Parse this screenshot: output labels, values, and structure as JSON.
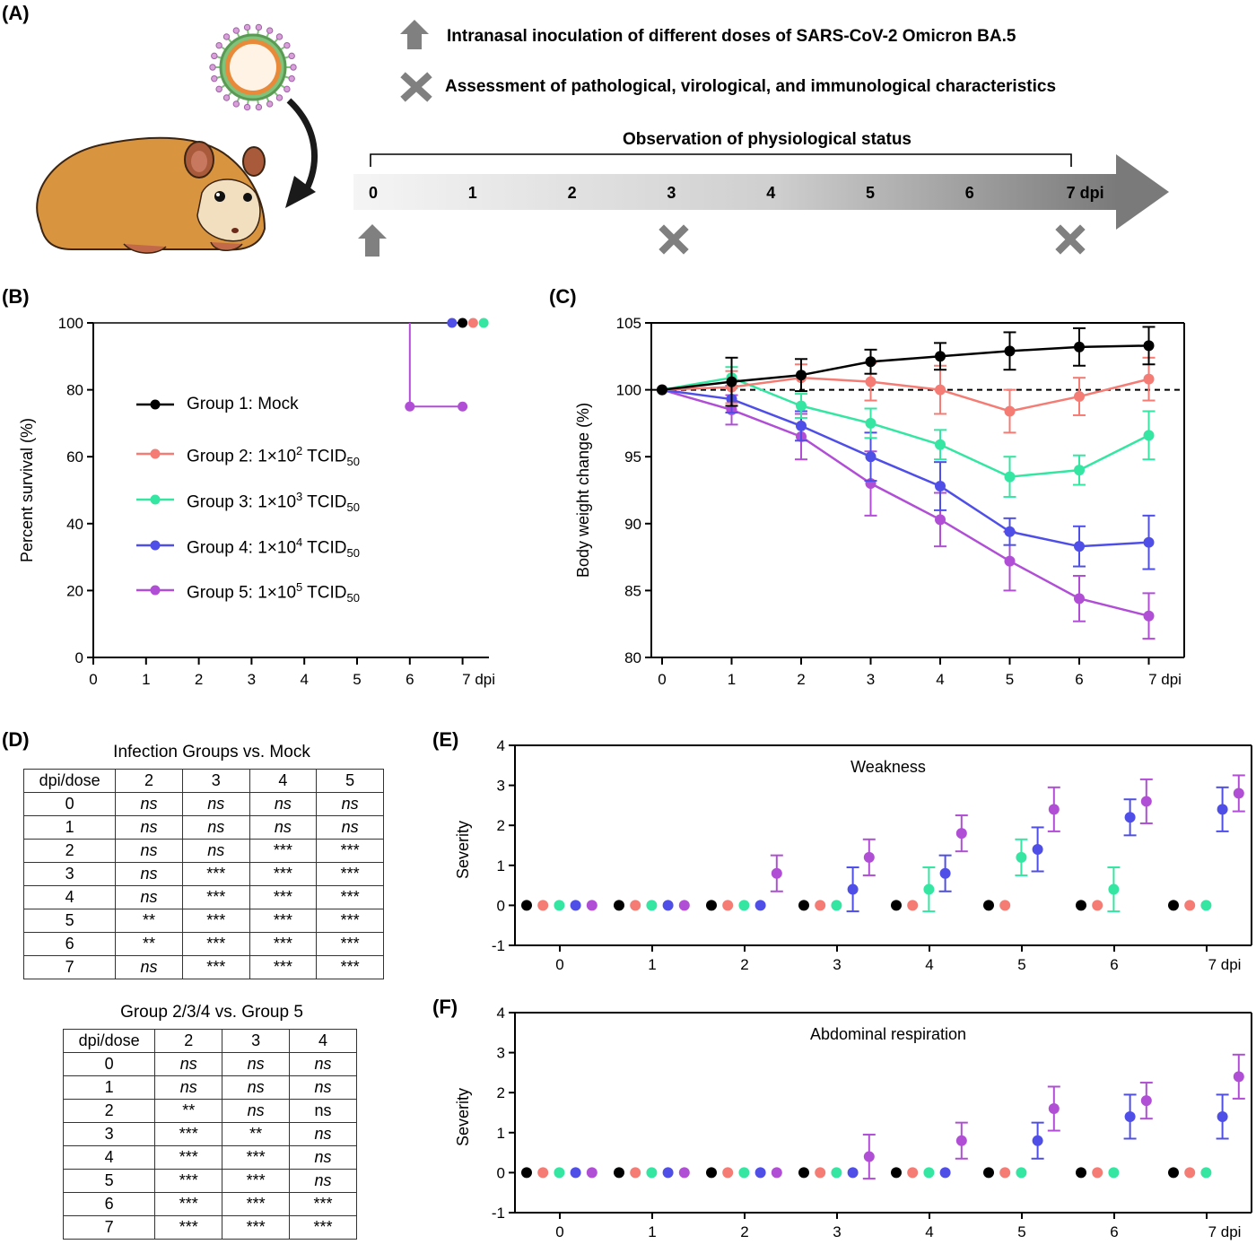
{
  "panelA": {
    "letter": "(A)",
    "legend_inoculation": "Intranasal inoculation of different doses of SARS-CoV-2 Omicron BA.5",
    "legend_assessment": "Assessment of pathological, virological, and immunological characteristics",
    "bracket_label": "Observation of physiological status",
    "timeline_ticks": [
      "0",
      "1",
      "2",
      "3",
      "4",
      "5",
      "6",
      "7 dpi"
    ],
    "inoculation_marks_at": [
      0
    ],
    "assessment_marks_at": [
      3,
      7
    ],
    "colors": {
      "arrow": "#808080",
      "hamster_body": "#d9943f",
      "hamster_face": "#f2dfc0"
    }
  },
  "colors": {
    "group1": "#000000",
    "group2": "#f47c74",
    "group3": "#35e6a2",
    "group4": "#4f4fe8",
    "group5": "#b04fd6"
  },
  "legendB": [
    {
      "group": "Group 1",
      "sep": ":",
      "dose": "Mock",
      "exp": "",
      "unit": "",
      "sub": ""
    },
    {
      "group": "Group 2",
      "sep": ":",
      "dose": "1×10",
      "exp": "2",
      "unit": "TCID",
      "sub": "50"
    },
    {
      "group": "Group 3",
      "sep": ":",
      "dose": "1×10",
      "exp": "3",
      "unit": "TCID",
      "sub": "50"
    },
    {
      "group": "Group 4",
      "sep": ":",
      "dose": "1×10",
      "exp": "4",
      "unit": "TCID",
      "sub": "50"
    },
    {
      "group": "Group 5",
      "sep": ":",
      "dose": "1×10",
      "exp": "5",
      "unit": "TCID",
      "sub": "50"
    }
  ],
  "tableD1": {
    "letter": "(D)",
    "title": "Infection Groups vs. Mock",
    "header": [
      "dpi/dose",
      "2",
      "3",
      "4",
      "5"
    ],
    "rows": [
      [
        "0",
        "ns",
        "ns",
        "ns",
        "ns"
      ],
      [
        "1",
        "ns",
        "ns",
        "ns",
        "ns"
      ],
      [
        "2",
        "ns",
        "ns",
        "***",
        "***"
      ],
      [
        "3",
        "ns",
        "***",
        "***",
        "***"
      ],
      [
        "4",
        "ns",
        "***",
        "***",
        "***"
      ],
      [
        "5",
        "**",
        "***",
        "***",
        "***"
      ],
      [
        "6",
        "**",
        "***",
        "***",
        "***"
      ],
      [
        "7",
        "ns",
        "***",
        "***",
        "***"
      ]
    ]
  },
  "tableD2": {
    "title": "Group 2/3/4  vs. Group 5",
    "header": [
      "dpi/dose",
      "2",
      "3",
      "4"
    ],
    "rows": [
      [
        "0",
        "ns",
        "ns",
        "ns"
      ],
      [
        "1",
        "ns",
        "ns",
        "ns"
      ],
      [
        "2",
        "**",
        "ns",
        "ns "
      ],
      [
        "3",
        "***",
        "**",
        "ns"
      ],
      [
        "4",
        "***",
        "***",
        "ns"
      ],
      [
        "5",
        "***",
        "***",
        "ns"
      ],
      [
        "6",
        "***",
        "***",
        "***"
      ],
      [
        "7",
        "***",
        "***",
        "***"
      ]
    ]
  },
  "chart_data": [
    {
      "id": "B",
      "letter": "(B)",
      "type": "line",
      "ylabel": "Percent survival (%)",
      "xlabel": "",
      "x_ticks": [
        "0",
        "1",
        "2",
        "3",
        "4",
        "5",
        "6",
        "7 dpi"
      ],
      "xlim": [
        0,
        7.5
      ],
      "ylim": [
        0,
        100
      ],
      "y_ticks": [
        0,
        20,
        40,
        60,
        80,
        100
      ],
      "series": [
        {
          "key": "group1",
          "steps": [
            [
              0,
              100
            ],
            [
              7,
              100
            ]
          ],
          "end_x": 7.0,
          "end_y": 100
        },
        {
          "key": "group2",
          "steps": [
            [
              0,
              100
            ],
            [
              7,
              100
            ]
          ],
          "end_x": 7.2,
          "end_y": 100
        },
        {
          "key": "group3",
          "steps": [
            [
              0,
              100
            ],
            [
              7,
              100
            ]
          ],
          "end_x": 7.4,
          "end_y": 100
        },
        {
          "key": "group4",
          "steps": [
            [
              0,
              100
            ],
            [
              7,
              100
            ]
          ],
          "end_x": 6.8,
          "end_y": 100
        },
        {
          "key": "group5",
          "steps": [
            [
              0,
              100
            ],
            [
              6,
              100
            ],
            [
              6,
              75
            ],
            [
              7,
              75
            ]
          ],
          "points": [
            [
              6,
              75
            ],
            [
              7,
              75
            ]
          ]
        }
      ]
    },
    {
      "id": "C",
      "letter": "(C)",
      "type": "line",
      "ylabel": "Body weight change (%)",
      "xlabel": "",
      "x_ticks": [
        "0",
        "1",
        "2",
        "3",
        "4",
        "5",
        "6",
        "7 dpi"
      ],
      "xlim": [
        0,
        7.5
      ],
      "ylim": [
        80,
        105
      ],
      "y_ticks": [
        80,
        85,
        90,
        95,
        100,
        105
      ],
      "reference_line": 100,
      "series": [
        {
          "key": "group1",
          "x": [
            0,
            1,
            2,
            3,
            4,
            5,
            6,
            7
          ],
          "y": [
            100,
            100.6,
            101.1,
            102.1,
            102.5,
            102.9,
            103.2,
            103.3
          ],
          "err": [
            0,
            1.8,
            1.2,
            0.9,
            1.0,
            1.4,
            1.4,
            1.4
          ]
        },
        {
          "key": "group2",
          "x": [
            0,
            1,
            2,
            3,
            4,
            5,
            6,
            7
          ],
          "y": [
            100,
            100.2,
            100.9,
            100.6,
            100.0,
            98.4,
            99.5,
            100.8
          ],
          "err": [
            0,
            1.2,
            1.0,
            1.4,
            1.8,
            1.6,
            1.4,
            1.6
          ]
        },
        {
          "key": "group3",
          "x": [
            0,
            1,
            2,
            3,
            4,
            5,
            6,
            7
          ],
          "y": [
            100,
            100.9,
            98.8,
            97.5,
            95.9,
            93.5,
            94.0,
            96.6
          ],
          "err": [
            0,
            0.8,
            0.9,
            1.1,
            1.1,
            1.5,
            1.1,
            1.8
          ]
        },
        {
          "key": "group4",
          "x": [
            0,
            1,
            2,
            3,
            4,
            5,
            6,
            7
          ],
          "y": [
            100,
            99.3,
            97.3,
            95.0,
            92.8,
            89.4,
            88.3,
            88.6
          ],
          "err": [
            0,
            1.0,
            1.1,
            1.8,
            1.8,
            1.0,
            1.5,
            2.0
          ]
        },
        {
          "key": "group5",
          "x": [
            0,
            1,
            2,
            3,
            4,
            5,
            6,
            7
          ],
          "y": [
            100,
            98.5,
            96.5,
            93.0,
            90.3,
            87.2,
            84.4,
            83.1
          ],
          "err": [
            0,
            1.1,
            1.7,
            2.4,
            2.0,
            2.2,
            1.7,
            1.7
          ]
        }
      ]
    },
    {
      "id": "E",
      "letter": "(E)",
      "type": "scatter",
      "title": "Weakness",
      "ylabel": "Severity",
      "x_ticks": [
        "0",
        "1",
        "2",
        "3",
        "4",
        "5",
        "6",
        "7 dpi"
      ],
      "ylim": [
        -1,
        4
      ],
      "y_ticks": [
        -1,
        0,
        1,
        2,
        3,
        4
      ],
      "series": [
        {
          "key": "group1",
          "y": [
            0,
            0,
            0,
            0,
            0,
            0,
            0,
            0
          ],
          "err": [
            0,
            0,
            0,
            0,
            0,
            0,
            0,
            0
          ]
        },
        {
          "key": "group2",
          "y": [
            0,
            0,
            0,
            0,
            0,
            0,
            0,
            0
          ],
          "err": [
            0,
            0,
            0,
            0,
            0,
            0,
            0,
            0
          ]
        },
        {
          "key": "group3",
          "y": [
            0,
            0,
            0,
            0,
            0.4,
            1.2,
            0.4,
            0
          ],
          "err": [
            0,
            0,
            0,
            0,
            0.55,
            0.45,
            0.55,
            0
          ]
        },
        {
          "key": "group4",
          "y": [
            0,
            0,
            0,
            0.4,
            0.8,
            1.4,
            2.2,
            2.4
          ],
          "err": [
            0,
            0,
            0,
            0.55,
            0.45,
            0.55,
            0.45,
            0.55
          ]
        },
        {
          "key": "group5",
          "y": [
            0,
            0,
            0.8,
            1.2,
            1.8,
            2.4,
            2.6,
            2.8
          ],
          "err": [
            0,
            0,
            0.45,
            0.45,
            0.45,
            0.55,
            0.55,
            0.45
          ]
        }
      ]
    },
    {
      "id": "F",
      "letter": "(F)",
      "type": "scatter",
      "title": "Abdominal respiration",
      "ylabel": "Severity",
      "x_ticks": [
        "0",
        "1",
        "2",
        "3",
        "4",
        "5",
        "6",
        "7 dpi"
      ],
      "ylim": [
        -1,
        4
      ],
      "y_ticks": [
        -1,
        0,
        1,
        2,
        3,
        4
      ],
      "series": [
        {
          "key": "group1",
          "y": [
            0,
            0,
            0,
            0,
            0,
            0,
            0,
            0
          ],
          "err": [
            0,
            0,
            0,
            0,
            0,
            0,
            0,
            0
          ]
        },
        {
          "key": "group2",
          "y": [
            0,
            0,
            0,
            0,
            0,
            0,
            0,
            0
          ],
          "err": [
            0,
            0,
            0,
            0,
            0,
            0,
            0,
            0
          ]
        },
        {
          "key": "group3",
          "y": [
            0,
            0,
            0,
            0,
            0,
            0,
            0,
            0
          ],
          "err": [
            0,
            0,
            0,
            0,
            0,
            0,
            0,
            0
          ]
        },
        {
          "key": "group4",
          "y": [
            0,
            0,
            0,
            0,
            0,
            0.8,
            1.4,
            1.4
          ],
          "err": [
            0,
            0,
            0,
            0,
            0,
            0.45,
            0.55,
            0.55
          ]
        },
        {
          "key": "group5",
          "y": [
            0,
            0,
            0,
            0.4,
            0.8,
            1.6,
            1.8,
            2.4
          ],
          "err": [
            0,
            0,
            0,
            0.55,
            0.45,
            0.55,
            0.45,
            0.55
          ]
        }
      ]
    }
  ]
}
